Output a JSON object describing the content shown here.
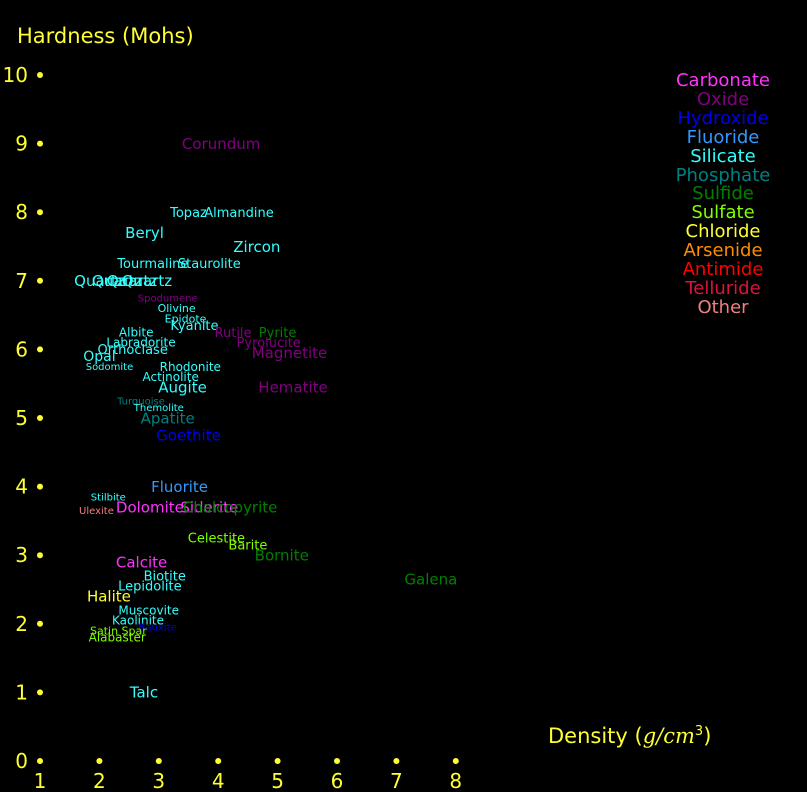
{
  "chart_data": {
    "type": "scatter",
    "title": "",
    "ylabel": "Hardness (Mohs)",
    "xlabel": "Density (g/cm³)",
    "xlabel_prefix": "Density (",
    "xlabel_unit": "g/cm",
    "xlabel_exp": "3",
    "xlabel_suffix": ")",
    "xlim": [
      1,
      8
    ],
    "ylim": [
      0,
      10
    ],
    "xticks": [
      "1",
      "2",
      "3",
      "4",
      "5",
      "6",
      "7",
      "8"
    ],
    "yticks": [
      "0",
      "1",
      "2",
      "3",
      "4",
      "5",
      "6",
      "7",
      "8",
      "9",
      "10"
    ],
    "legend_position": "top-right",
    "categories": [
      {
        "name": "Carbonate",
        "color": "#ff33ff"
      },
      {
        "name": "Oxide",
        "color": "#800080"
      },
      {
        "name": "Hydroxide",
        "color": "#0000ee"
      },
      {
        "name": "Fluoride",
        "color": "#3399ff"
      },
      {
        "name": "Silicate",
        "color": "#33ffff"
      },
      {
        "name": "Phosphate",
        "color": "#008080"
      },
      {
        "name": "Sulfide",
        "color": "#008000"
      },
      {
        "name": "Sulfate",
        "color": "#7fff00"
      },
      {
        "name": "Chloride",
        "color": "#ffff33"
      },
      {
        "name": "Arsenide",
        "color": "#ff8c00"
      },
      {
        "name": "Antimide",
        "color": "#ff0000"
      },
      {
        "name": "Telluride",
        "color": "#dc143c"
      },
      {
        "name": "Other",
        "color": "#f08080"
      }
    ],
    "points": [
      {
        "name": "Corundum",
        "x": 4.05,
        "y": 9.0,
        "cat": "Oxide",
        "size": 15
      },
      {
        "name": "Topaz",
        "x": 3.5,
        "y": 8.0,
        "cat": "Silicate",
        "size": 13
      },
      {
        "name": "Almandine",
        "x": 4.35,
        "y": 8.0,
        "cat": "Silicate",
        "size": 13
      },
      {
        "name": "Beryl",
        "x": 2.76,
        "y": 7.7,
        "cat": "Silicate",
        "size": 15
      },
      {
        "name": "Zircon",
        "x": 4.65,
        "y": 7.5,
        "cat": "Silicate",
        "size": 15
      },
      {
        "name": "Tourmaline",
        "x": 2.9,
        "y": 7.25,
        "cat": "Silicate",
        "size": 13
      },
      {
        "name": "Staurolite",
        "x": 3.85,
        "y": 7.25,
        "cat": "Silicate",
        "size": 13
      },
      {
        "name": "Quartz",
        "x": 2.0,
        "y": 7.0,
        "cat": "Silicate",
        "size": 15
      },
      {
        "name": "Quartz",
        "x": 2.3,
        "y": 7.0,
        "cat": "Silicate",
        "size": 15
      },
      {
        "name": "Quartz",
        "x": 2.55,
        "y": 7.0,
        "cat": "Silicate",
        "size": 15
      },
      {
        "name": "Quartz",
        "x": 2.8,
        "y": 7.0,
        "cat": "Silicate",
        "size": 15
      },
      {
        "name": "Spodumene",
        "x": 3.15,
        "y": 6.75,
        "cat": "Oxide",
        "size": 10
      },
      {
        "name": "Olivine",
        "x": 3.3,
        "y": 6.6,
        "cat": "Silicate",
        "size": 11
      },
      {
        "name": "Epidote",
        "x": 3.45,
        "y": 6.45,
        "cat": "Silicate",
        "size": 11
      },
      {
        "name": "Kyanite",
        "x": 3.6,
        "y": 6.35,
        "cat": "Silicate",
        "size": 13
      },
      {
        "name": "Albite",
        "x": 2.62,
        "y": 6.25,
        "cat": "Silicate",
        "size": 12
      },
      {
        "name": "Rutile",
        "x": 4.25,
        "y": 6.25,
        "cat": "Oxide",
        "size": 13
      },
      {
        "name": "Pyrite",
        "x": 5.0,
        "y": 6.25,
        "cat": "Sulfide",
        "size": 13
      },
      {
        "name": "Labradorite",
        "x": 2.7,
        "y": 6.1,
        "cat": "Silicate",
        "size": 12
      },
      {
        "name": "Pyrolucite",
        "x": 4.85,
        "y": 6.1,
        "cat": "Oxide",
        "size": 13
      },
      {
        "name": "Orthoclase",
        "x": 2.56,
        "y": 6.0,
        "cat": "Silicate",
        "size": 13
      },
      {
        "name": "Opal",
        "x": 2.0,
        "y": 5.9,
        "cat": "Silicate",
        "size": 14
      },
      {
        "name": "Magnetite",
        "x": 5.2,
        "y": 5.95,
        "cat": "Oxide",
        "size": 15
      },
      {
        "name": "Rhodonite",
        "x": 3.53,
        "y": 5.75,
        "cat": "Silicate",
        "size": 12
      },
      {
        "name": "Sodomite",
        "x": 2.17,
        "y": 5.75,
        "cat": "Silicate",
        "size": 10
      },
      {
        "name": "Actinolite",
        "x": 3.2,
        "y": 5.6,
        "cat": "Silicate",
        "size": 12
      },
      {
        "name": "Augite",
        "x": 3.4,
        "y": 5.45,
        "cat": "Silicate",
        "size": 15
      },
      {
        "name": "Hematite",
        "x": 5.26,
        "y": 5.45,
        "cat": "Oxide",
        "size": 15
      },
      {
        "name": "Turquoise",
        "x": 2.7,
        "y": 5.25,
        "cat": "Phosphate",
        "size": 10
      },
      {
        "name": "Themolite",
        "x": 3.0,
        "y": 5.15,
        "cat": "Silicate",
        "size": 10
      },
      {
        "name": "Apatite",
        "x": 3.15,
        "y": 5.0,
        "cat": "Phosphate",
        "size": 15
      },
      {
        "name": "Goethite",
        "x": 3.5,
        "y": 4.75,
        "cat": "Hydroxide",
        "size": 15
      },
      {
        "name": "Fluorite",
        "x": 3.35,
        "y": 4.0,
        "cat": "Fluoride",
        "size": 15
      },
      {
        "name": "Stilbite",
        "x": 2.15,
        "y": 3.85,
        "cat": "Silicate",
        "size": 10
      },
      {
        "name": "Dolomite",
        "x": 2.85,
        "y": 3.7,
        "cat": "Carbonate",
        "size": 15
      },
      {
        "name": "Siderite",
        "x": 3.85,
        "y": 3.7,
        "cat": "Carbonate",
        "size": 15
      },
      {
        "name": "Chalcopyrite",
        "x": 4.2,
        "y": 3.7,
        "cat": "Sulfide",
        "size": 15
      },
      {
        "name": "Ulexite",
        "x": 1.95,
        "y": 3.65,
        "cat": "Other",
        "size": 10
      },
      {
        "name": "Celestite",
        "x": 3.97,
        "y": 3.25,
        "cat": "Sulfate",
        "size": 13
      },
      {
        "name": "Barite",
        "x": 4.5,
        "y": 3.15,
        "cat": "Sulfate",
        "size": 13
      },
      {
        "name": "Bornite",
        "x": 5.07,
        "y": 3.0,
        "cat": "Sulfide",
        "size": 15
      },
      {
        "name": "Calcite",
        "x": 2.71,
        "y": 2.9,
        "cat": "Carbonate",
        "size": 15
      },
      {
        "name": "Galena",
        "x": 7.58,
        "y": 2.65,
        "cat": "Sulfide",
        "size": 15
      },
      {
        "name": "Biotite",
        "x": 3.1,
        "y": 2.7,
        "cat": "Silicate",
        "size": 13
      },
      {
        "name": "Lepidolite",
        "x": 2.85,
        "y": 2.55,
        "cat": "Silicate",
        "size": 13
      },
      {
        "name": "Halite",
        "x": 2.16,
        "y": 2.4,
        "cat": "Chloride",
        "size": 15
      },
      {
        "name": "Muscovite",
        "x": 2.83,
        "y": 2.2,
        "cat": "Silicate",
        "size": 12
      },
      {
        "name": "Kaolinite",
        "x": 2.65,
        "y": 2.05,
        "cat": "Silicate",
        "size": 12
      },
      {
        "name": "Bauxite",
        "x": 2.98,
        "y": 1.95,
        "cat": "Hydroxide",
        "size": 10
      },
      {
        "name": "Satin Spar",
        "x": 2.32,
        "y": 1.9,
        "cat": "Sulfate",
        "size": 11
      },
      {
        "name": "Alabaster",
        "x": 2.3,
        "y": 1.8,
        "cat": "Sulfate",
        "size": 12
      },
      {
        "name": "Talc",
        "x": 2.75,
        "y": 1.0,
        "cat": "Silicate",
        "size": 15
      }
    ]
  }
}
